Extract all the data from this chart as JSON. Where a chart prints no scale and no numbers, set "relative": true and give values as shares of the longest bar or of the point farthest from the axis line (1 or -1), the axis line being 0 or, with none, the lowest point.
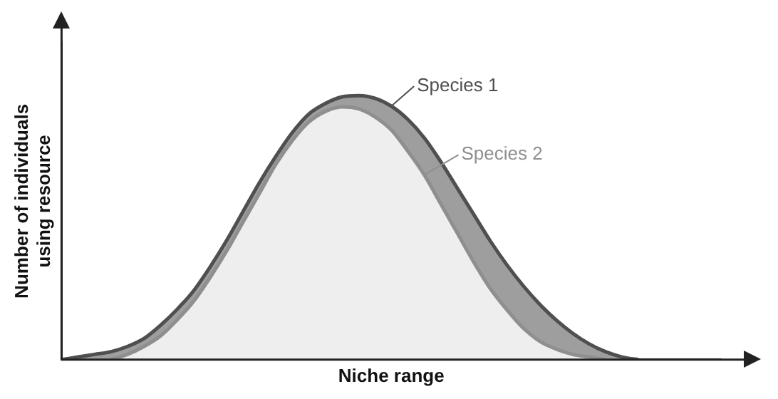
{
  "chart_data": {
    "type": "area",
    "relative": true,
    "xlabel": "Niche range",
    "ylabel": "Number of individuals using resource",
    "legend": "top right",
    "grid": false,
    "categories": [
      null,
      null,
      null,
      null,
      null,
      null,
      null,
      null,
      null,
      null,
      null,
      null,
      null,
      null,
      null,
      null,
      null,
      null,
      null,
      null,
      null,
      null,
      null,
      null,
      null,
      null,
      null,
      null,
      null,
      null,
      null,
      null,
      null,
      null,
      null,
      null,
      null,
      null,
      null,
      null,
      null
    ],
    "series": [
      {
        "name": "Species 1",
        "color": "#4f4f4f",
        "values": [
          0,
          0.01,
          0.02,
          0.03,
          0.05,
          0.08,
          0.13,
          0.19,
          0.26,
          0.35,
          0.45,
          0.56,
          0.67,
          0.77,
          0.86,
          0.93,
          0.97,
          0.995,
          1,
          0.99,
          0.96,
          0.91,
          0.84,
          0.75,
          0.65,
          0.55,
          0.45,
          0.36,
          0.28,
          0.21,
          0.15,
          0.1,
          0.06,
          0.03,
          0.01,
          0,
          null,
          null,
          null,
          null,
          null
        ]
      },
      {
        "name": "Species 2",
        "color": "#8f8f8f",
        "values": [
          null,
          null,
          null,
          0,
          0.02,
          0.05,
          0.09,
          0.15,
          0.22,
          0.31,
          0.41,
          0.52,
          0.63,
          0.74,
          0.83,
          0.9,
          0.94,
          0.957,
          0.95,
          0.92,
          0.87,
          0.79,
          0.7,
          0.59,
          0.48,
          0.37,
          0.27,
          0.19,
          0.12,
          0.07,
          0.04,
          0.02,
          0.01,
          0,
          null,
          null,
          null,
          null,
          null,
          null,
          null
        ]
      }
    ]
  }
}
